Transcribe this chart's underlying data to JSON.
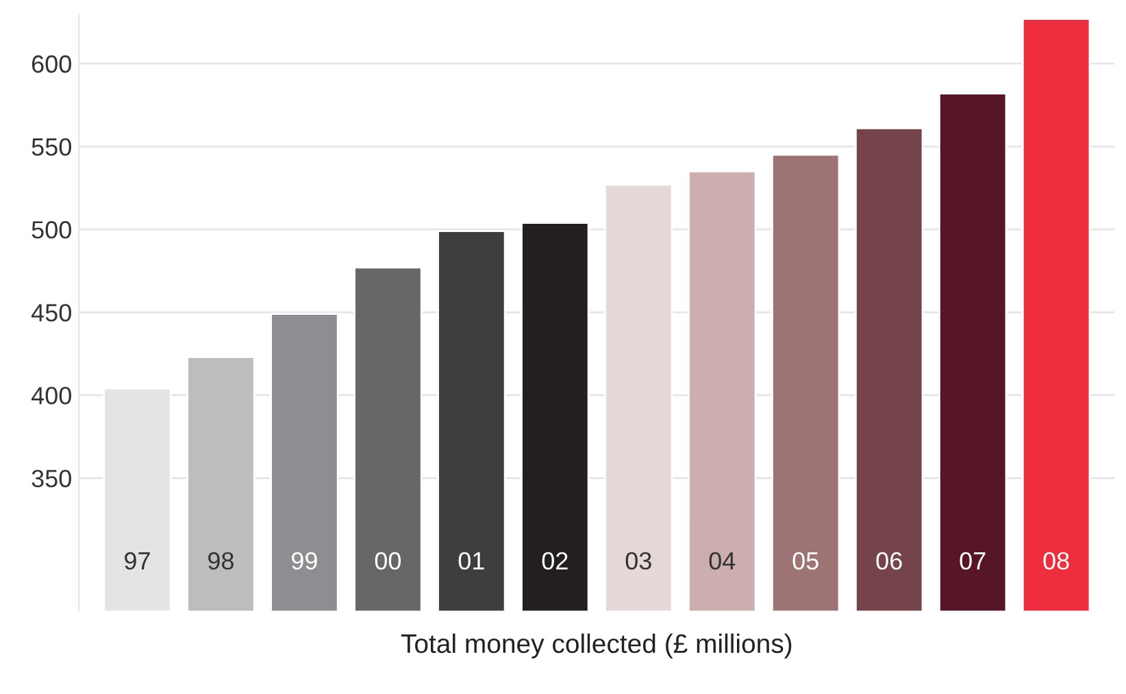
{
  "chart_data": {
    "type": "bar",
    "xlabel": "Total money collected (£ millions)",
    "categories": [
      "97",
      "98",
      "99",
      "00",
      "01",
      "02",
      "03",
      "04",
      "05",
      "06",
      "07",
      "08"
    ],
    "values": [
      404,
      423,
      449,
      477,
      499,
      504,
      527,
      535,
      545,
      561,
      582,
      627
    ],
    "colors": [
      "#e4e4e6",
      "#bdbdc0",
      "#8e8e92",
      "#676769",
      "#3e3e40",
      "#231f20",
      "#e6d8d9",
      "#cdaeae",
      "#9e7374",
      "#75434a",
      "#561626",
      "#ee2e3f"
    ],
    "ylim": [
      270,
      630
    ],
    "yticks": [
      350,
      400,
      450,
      500,
      550,
      600
    ],
    "grid": "y"
  }
}
